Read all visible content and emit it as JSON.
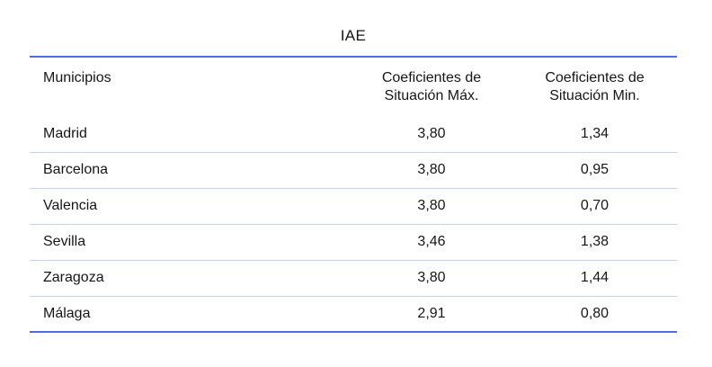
{
  "table": {
    "title": "IAE",
    "columns": [
      {
        "label": "Municipios"
      },
      {
        "line1": "Coeficientes de",
        "line2": "Situación Máx."
      },
      {
        "line1": "Coeficientes de",
        "line2": "Situación Min."
      }
    ],
    "rows": [
      {
        "municipio": "Madrid",
        "coef_max": "3,80",
        "coef_min": "1,34"
      },
      {
        "municipio": "Barcelona",
        "coef_max": "3,80",
        "coef_min": "0,95"
      },
      {
        "municipio": "Valencia",
        "coef_max": "3,80",
        "coef_min": "0,70"
      },
      {
        "municipio": "Sevilla",
        "coef_max": "3,46",
        "coef_min": "1,38"
      },
      {
        "municipio": "Zaragoza",
        "coef_max": "3,80",
        "coef_min": "1,44"
      },
      {
        "municipio": "Málaga",
        "coef_max": "2,91",
        "coef_min": "0,80"
      }
    ]
  },
  "colors": {
    "border_strong": "#4b6ce4",
    "border_light": "#c3d2f2",
    "text": "#161616",
    "bg": "#ffffff"
  }
}
